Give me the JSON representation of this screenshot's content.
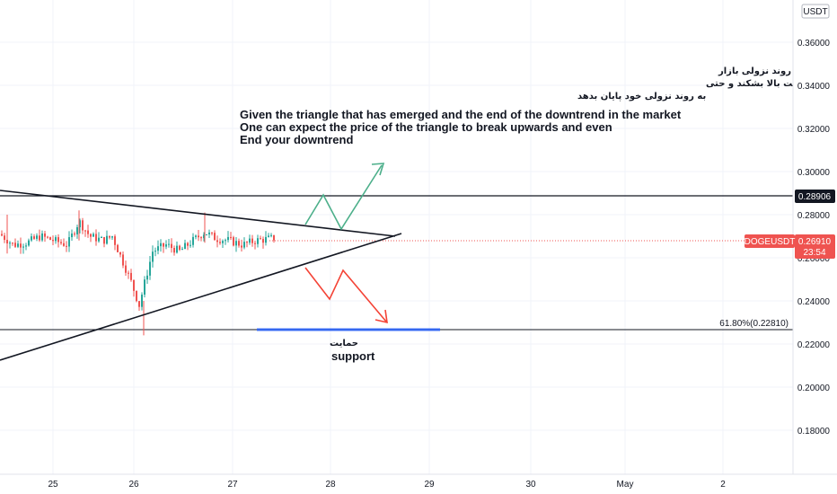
{
  "chart_data": {
    "type": "candlestick",
    "symbol_label": "DOGEUSDT",
    "currency_label": "USDT",
    "y_ticks": [
      "0.36000",
      "0.34000",
      "0.32000",
      "0.30000",
      "0.28000",
      "0.26000",
      "0.24000",
      "0.22000",
      "0.20000",
      "0.18000"
    ],
    "x_ticks": [
      "25",
      "26",
      "27",
      "28",
      "29",
      "30",
      "May",
      "2"
    ],
    "current_price": "0.26910",
    "countdown": "23:54",
    "resistance_level": "0.28906",
    "fib_label": "61.80%(0.22810)",
    "annotation_fa_lines": [
      "با توجه به مثلثی که به وجود اومده و تموم شدن روند نزولی بازار",
      "میتوان منتظر بود که قیمت مثلث را ببه سمت بالا بشکند و حتی",
      "به روند نزولی خود پایان بدهد"
    ],
    "annotation_en_lines": [
      "Given the triangle that has emerged and the end of the downtrend in the market",
      "One can expect the price of the triangle to break upwards and even",
      "End your downtrend"
    ],
    "support_label_fa": "حمایت",
    "support_label_en": "support",
    "colors": {
      "up": "#26a69a",
      "down": "#ef5350",
      "support_line": "#2962ff",
      "up_arrow": "#4caf8a",
      "down_arrow": "#f44336"
    }
  }
}
